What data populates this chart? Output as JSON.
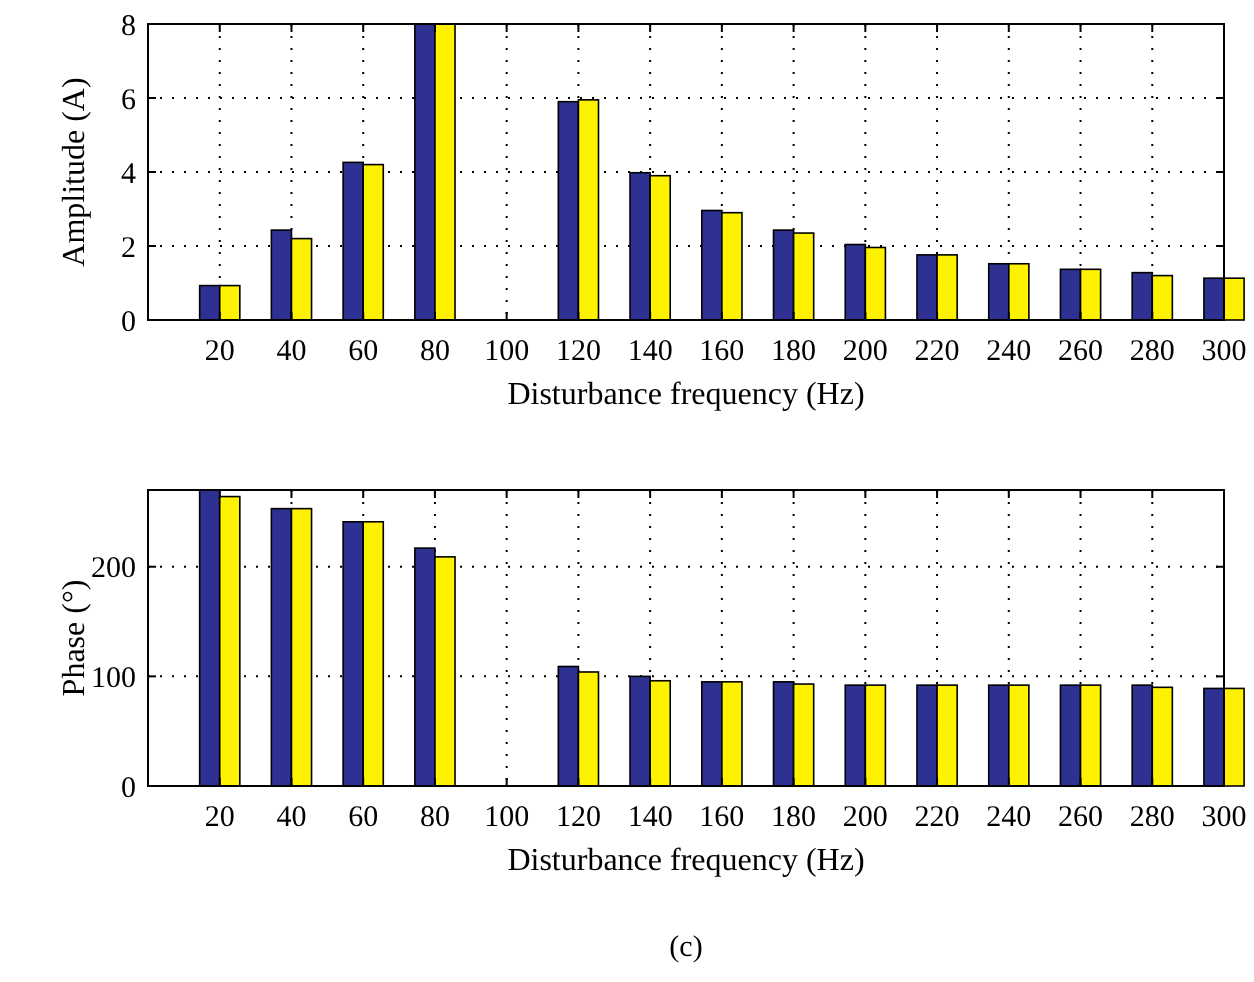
{
  "chart_data": [
    {
      "type": "bar",
      "xlabel": "Disturbance frequency (Hz)",
      "ylabel": "Amplitude (A)",
      "categories": [
        "20",
        "40",
        "60",
        "80",
        "100",
        "120",
        "140",
        "160",
        "180",
        "200",
        "220",
        "240",
        "260",
        "280",
        "300"
      ],
      "ylim": [
        0,
        8
      ],
      "yticks": [
        0,
        2,
        4,
        6,
        8
      ],
      "grid": true,
      "series": [
        {
          "color": "#2e3192",
          "values": [
            0.93,
            2.43,
            4.26,
            8,
            null,
            5.9,
            3.98,
            2.96,
            2.43,
            2.04,
            1.76,
            1.52,
            1.37,
            1.28,
            1.13
          ]
        },
        {
          "color": "#fff200",
          "values": [
            0.93,
            2.2,
            4.2,
            8,
            null,
            5.95,
            3.9,
            2.9,
            2.35,
            1.96,
            1.76,
            1.52,
            1.37,
            1.2,
            1.13
          ]
        }
      ]
    },
    {
      "type": "bar",
      "xlabel": "Disturbance frequency (Hz)",
      "ylabel": "Phase (°)",
      "categories": [
        "20",
        "40",
        "60",
        "80",
        "100",
        "120",
        "140",
        "160",
        "180",
        "200",
        "220",
        "240",
        "260",
        "280",
        "300"
      ],
      "ylim": [
        0,
        270
      ],
      "yticks": [
        0,
        100,
        200
      ],
      "grid": true,
      "annotations": [
        "(c)"
      ],
      "series": [
        {
          "color": "#2e3192",
          "values": [
            270,
            253,
            241,
            217,
            null,
            109,
            100,
            95,
            95,
            92,
            92,
            92,
            92,
            92,
            89
          ]
        },
        {
          "color": "#fff200",
          "values": [
            264,
            253,
            241,
            209,
            null,
            104,
            96,
            95,
            93,
            92,
            92,
            92,
            92,
            90,
            89
          ]
        }
      ]
    }
  ]
}
